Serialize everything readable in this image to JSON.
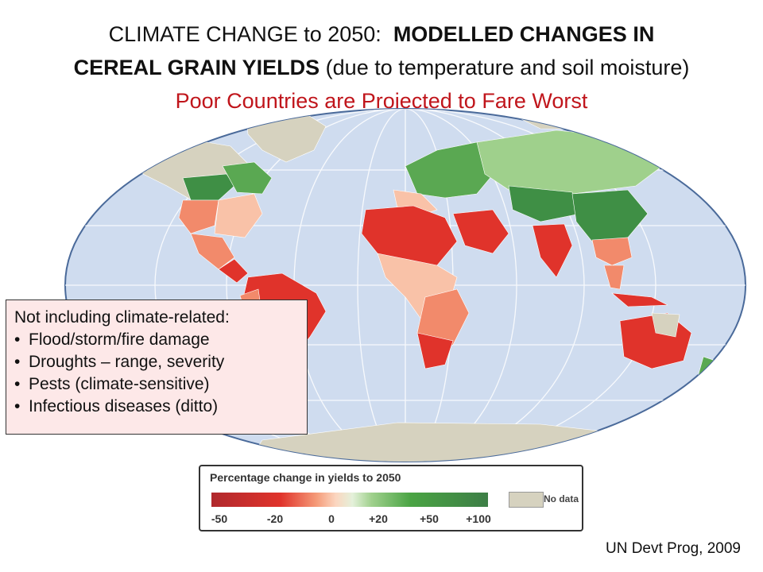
{
  "title": {
    "line1_normal": "CLIMATE CHANGE to 2050:",
    "line1_bold": "MODELLED CHANGES IN",
    "line2_bold": "CEREAL GRAIN YIELDS",
    "line2_normal": "(due to temperature and soil moisture)",
    "subtitle": "Poor Countries are Projected to Fare Worst"
  },
  "note": {
    "heading": "Not including climate-related:",
    "items": [
      "Flood/storm/fire damage",
      "Droughts – range, severity",
      "Pests (climate-sensitive)",
      "Infectious diseases (ditto)"
    ]
  },
  "legend": {
    "title": "Percentage change in yields to 2050",
    "ticks": [
      "-50",
      "-20",
      "0",
      "+20",
      "+50",
      "+100"
    ],
    "no_data_label": "No data"
  },
  "source": "UN Devt Prog, 2009",
  "colors": {
    "ocean": "#cfdcef",
    "no_data": "#d6d2bf",
    "subtitle": "#c0151b",
    "loss_strong": "#e0332b",
    "loss_moderate": "#f28a6b",
    "loss_light": "#f9c2a8",
    "gain_light": "#9fd08c",
    "gain_strong": "#3f8f45"
  }
}
